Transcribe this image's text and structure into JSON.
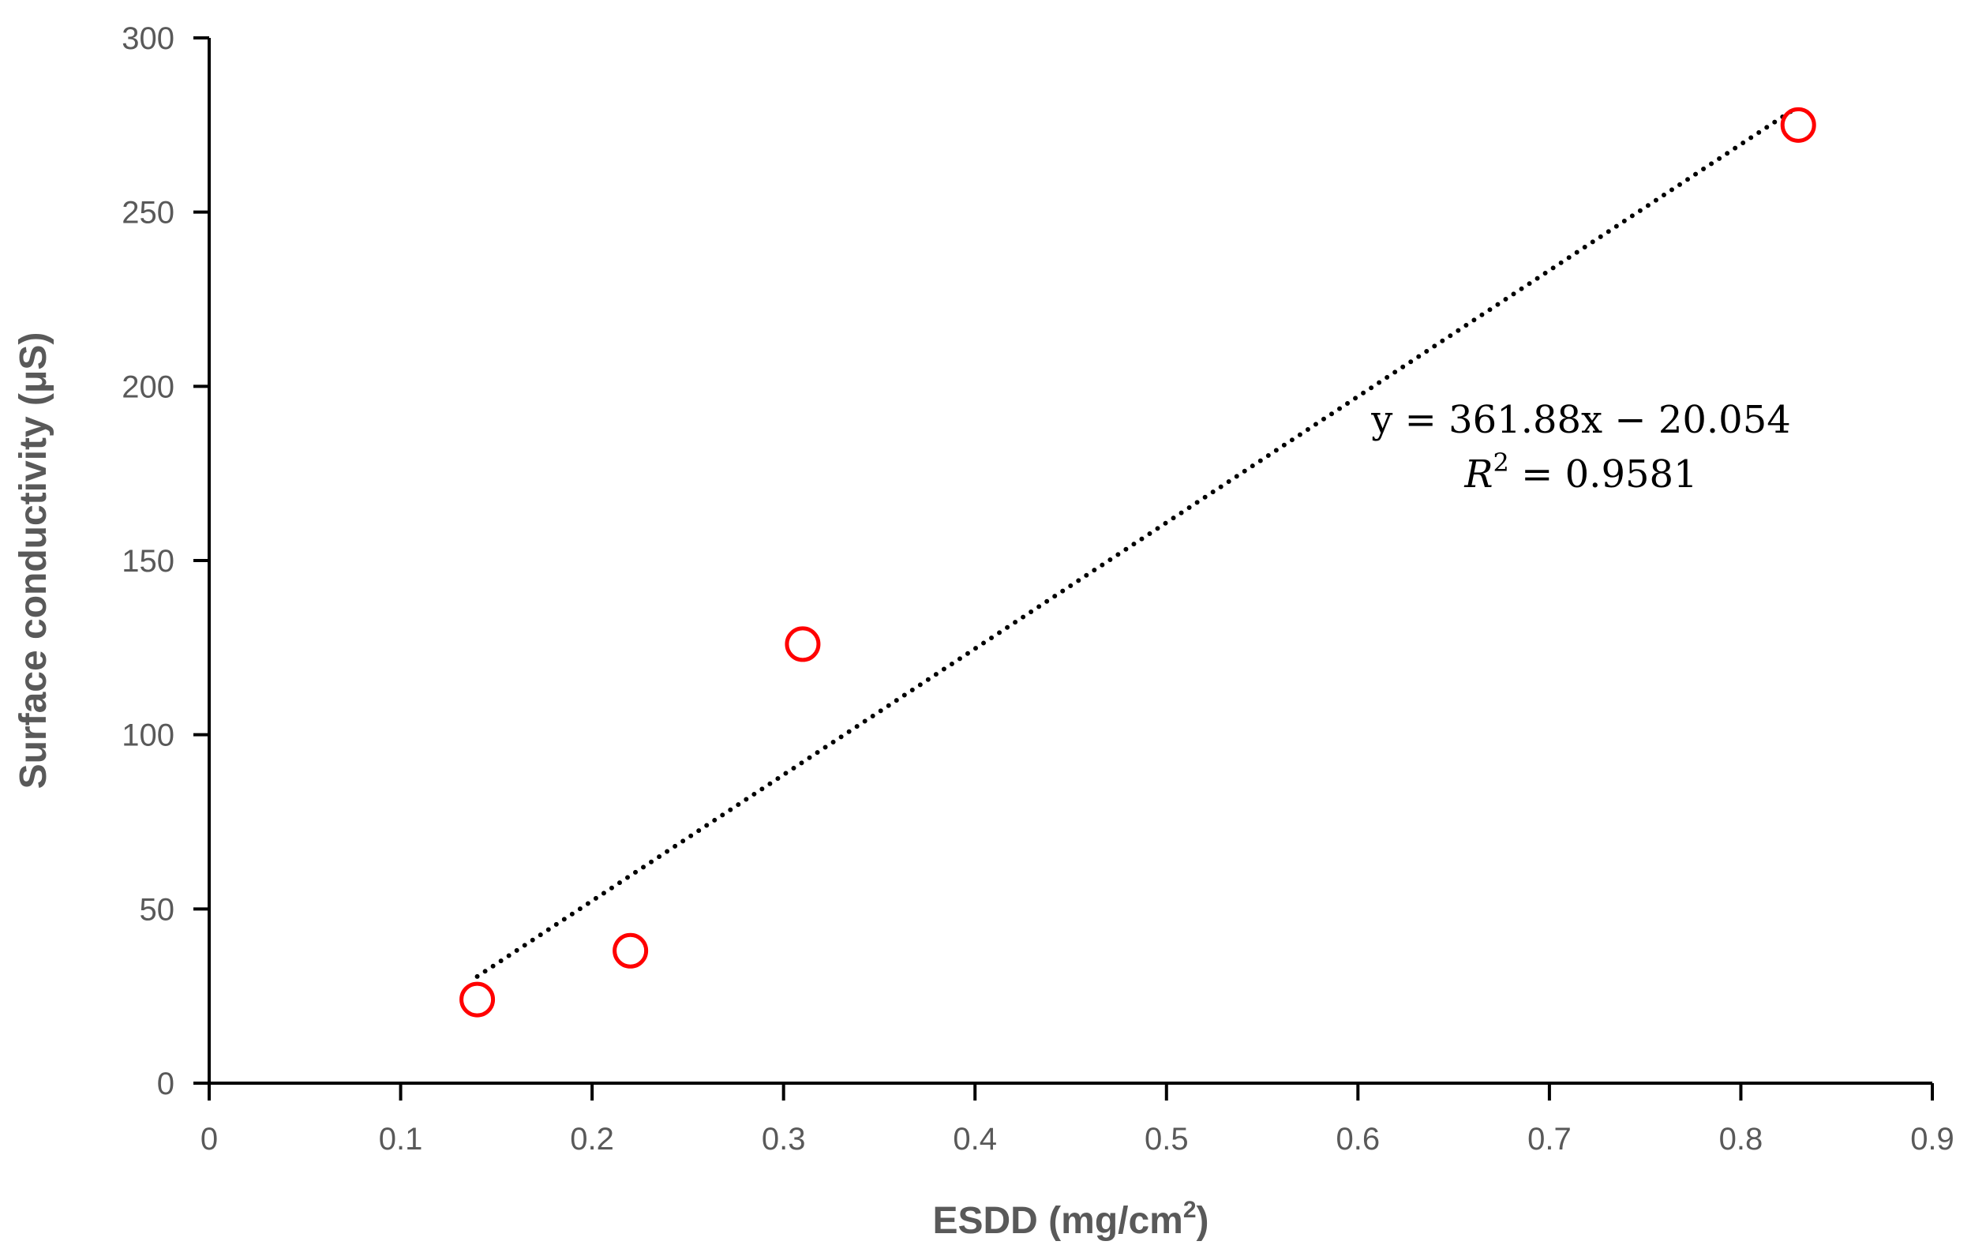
{
  "chart_data": {
    "type": "scatter",
    "xlabel": "ESDD (mg/cm",
    "xlabel_sup": "2",
    "xlabel_end": ")",
    "ylabel": "Surface conductivity (μS)",
    "xlim": [
      0,
      0.9
    ],
    "ylim": [
      0,
      300
    ],
    "x_ticks": [
      0,
      0.1,
      0.2,
      0.3,
      0.4,
      0.5,
      0.6,
      0.7,
      0.8,
      0.9
    ],
    "x_tick_labels": [
      "0",
      "0.1",
      "0.2",
      "0.3",
      "0.4",
      "0.5",
      "0.6",
      "0.7",
      "0.8",
      "0.9"
    ],
    "y_ticks": [
      0,
      50,
      100,
      150,
      200,
      250,
      300
    ],
    "y_tick_labels": [
      "0",
      "50",
      "100",
      "150",
      "200",
      "250",
      "300"
    ],
    "grid": false,
    "legend": "none",
    "series": [
      {
        "marker": "hollow-circle",
        "color": "#ff0000",
        "x": [
          0.14,
          0.22,
          0.31,
          0.83
        ],
        "y": [
          24,
          38,
          126,
          275
        ]
      }
    ],
    "trendline": {
      "kind": "linear",
      "style": "dotted",
      "color": "#000000",
      "slope": 361.88,
      "intercept": -20.054,
      "x_range": [
        0.14,
        0.83
      ],
      "equation_text": "y = 361.88x − 20.054",
      "r2_text": "R",
      "r2_sup": "2",
      "r2_value_text": " = 0.9581"
    },
    "axis_color": "#000000",
    "label_color": "#595959"
  }
}
